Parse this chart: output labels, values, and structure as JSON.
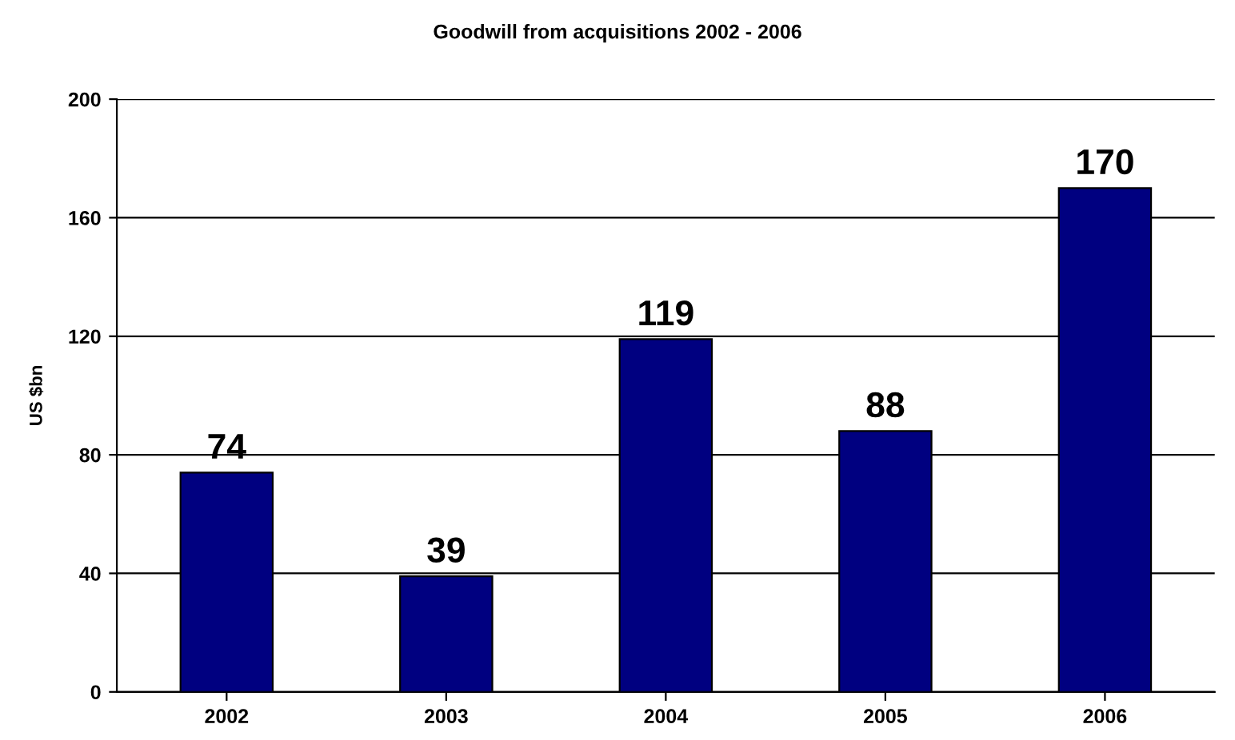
{
  "chart_data": {
    "type": "bar",
    "title": "Goodwill from acquisitions 2002 - 2006",
    "ylabel": "US $bn",
    "categories": [
      "2002",
      "2003",
      "2004",
      "2005",
      "2006"
    ],
    "values": [
      74,
      39,
      119,
      88,
      170
    ],
    "color": "#000080",
    "ylim": [
      0,
      200
    ],
    "yticks": [
      0,
      40,
      80,
      120,
      160,
      200
    ],
    "grid": "y",
    "data_labels": true
  }
}
